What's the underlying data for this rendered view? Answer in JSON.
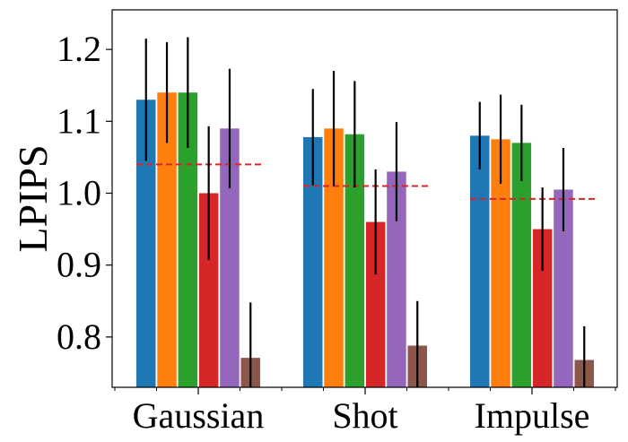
{
  "chart_data": {
    "type": "bar",
    "title": "",
    "xlabel": "",
    "ylabel": "LPIPS",
    "ylim": [
      0.73,
      1.255
    ],
    "yticks": [
      "0.8",
      "0.9",
      "1.0",
      "1.1",
      "1.2"
    ],
    "ytick_values": [
      0.8,
      0.9,
      1.0,
      1.1,
      1.2
    ],
    "categories": [
      "Gaussian",
      "Shot",
      "Impulse"
    ],
    "colors": [
      "#1f77b4",
      "#ff7f0e",
      "#2ca02c",
      "#d62728",
      "#9467bd",
      "#8c564b"
    ],
    "series": [
      {
        "name": "series-1",
        "values": [
          1.13,
          1.078,
          1.08
        ],
        "errors": [
          0.085,
          0.067,
          0.047
        ]
      },
      {
        "name": "series-2",
        "values": [
          1.14,
          1.09,
          1.075
        ],
        "errors": [
          0.07,
          0.08,
          0.062
        ]
      },
      {
        "name": "series-3",
        "values": [
          1.14,
          1.082,
          1.07
        ],
        "errors": [
          0.077,
          0.074,
          0.053
        ]
      },
      {
        "name": "series-4",
        "values": [
          1.0,
          0.96,
          0.95
        ],
        "errors": [
          0.093,
          0.073,
          0.058
        ]
      },
      {
        "name": "series-5",
        "values": [
          1.09,
          1.03,
          1.005
        ],
        "errors": [
          0.083,
          0.069,
          0.058
        ]
      },
      {
        "name": "series-6",
        "values": [
          0.771,
          0.788,
          0.768
        ],
        "errors": [
          0.077,
          0.062,
          0.047
        ]
      }
    ],
    "reference_lines": [
      1.04,
      1.01,
      0.992
    ],
    "reference_line_color": "#d62728"
  }
}
